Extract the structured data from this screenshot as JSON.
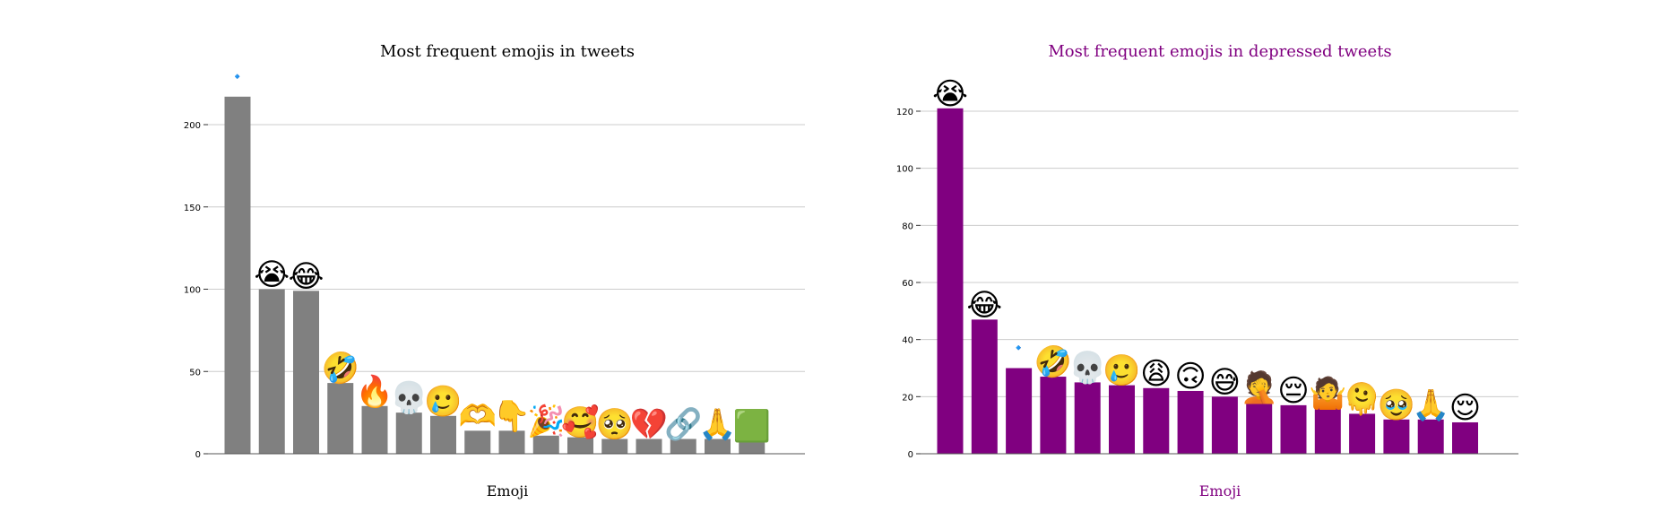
{
  "chart_data": [
    {
      "type": "bar",
      "title": "Most frequent emojis in tweets",
      "xlabel": "Emoji",
      "ylabel": "",
      "ylim": [
        0,
        220
      ],
      "yticks": [
        0,
        50,
        100,
        150,
        200
      ],
      "grid": "horizontal",
      "color": "#808080",
      "title_color": "#000000",
      "categories": [
        "🔹",
        "😭",
        "😂",
        "🤣",
        "🔥",
        "💀",
        "🥲",
        "🫶",
        "👇",
        "🎉",
        "🥰",
        "🥺",
        "💔",
        "🔗",
        "🙏",
        "🟩"
      ],
      "values": [
        217,
        100,
        99,
        43,
        29,
        25,
        23,
        14,
        14,
        11,
        10,
        9,
        9,
        9,
        9,
        8
      ]
    },
    {
      "type": "bar",
      "title": "Most frequent emojis in depressed tweets",
      "xlabel": "Emoji",
      "ylabel": "",
      "ylim": [
        0,
        130
      ],
      "yticks": [
        0,
        20,
        40,
        60,
        80,
        100,
        120
      ],
      "grid": "horizontal",
      "color": "#800080",
      "title_color": "#800080",
      "categories": [
        "😭",
        "😂",
        "🔹",
        "🤣",
        "💀",
        "🥲",
        "😩",
        "🙃",
        "😅",
        "🤦",
        "😔",
        "🤷",
        "🫠",
        "🥹",
        "🙏",
        "😌"
      ],
      "values": [
        121,
        47,
        30,
        27,
        25,
        24,
        23,
        22,
        20,
        18,
        17,
        16,
        14,
        12,
        12,
        11
      ]
    }
  ]
}
